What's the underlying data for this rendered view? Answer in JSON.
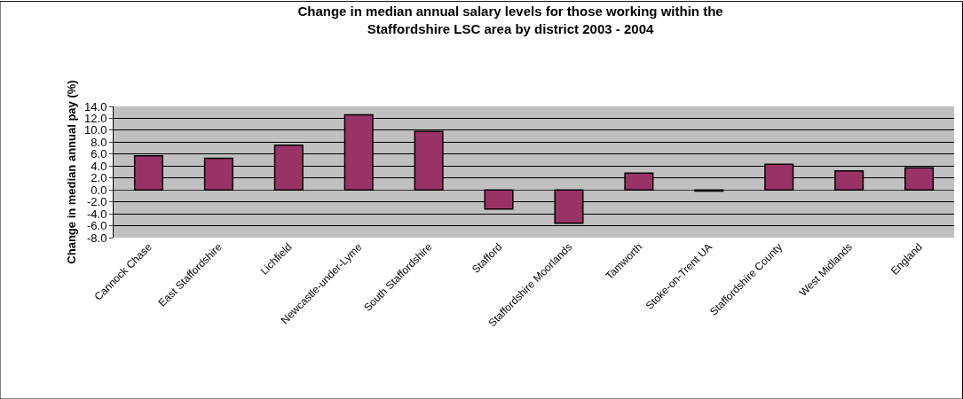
{
  "chart_data": {
    "type": "bar",
    "title": "Change in median annual salary levels for those working within the Staffordshire LSC area by district 2003 - 2004",
    "ylabel": "Change in median annual pay (%)",
    "categories": [
      "Cannock Chase",
      "East Staffordshire",
      "Lichfield",
      "Newcastle-under-Lyme",
      "South Staffordshire",
      "Stafford",
      "Staffordshire Moorlands",
      "Tamworth",
      "Stoke-on-Trent UA",
      "Staffordshire County",
      "West Midlands",
      "England"
    ],
    "values": [
      5.7,
      5.3,
      7.5,
      12.6,
      9.8,
      -3.2,
      -5.6,
      2.8,
      -0.2,
      4.3,
      3.2,
      3.7
    ],
    "color": "#993366",
    "ylim": [
      -8,
      14
    ],
    "yticks": [
      {
        "value": -8,
        "label": "-8.0"
      },
      {
        "value": -6,
        "label": "-6.0"
      },
      {
        "value": -4,
        "label": "-4.0"
      },
      {
        "value": -2,
        "label": "-2.0"
      },
      {
        "value": 0,
        "label": "0.0"
      },
      {
        "value": 2,
        "label": "2.0"
      },
      {
        "value": 4,
        "label": "4.0"
      },
      {
        "value": 6,
        "label": "6.0"
      },
      {
        "value": 8,
        "label": "8.0"
      },
      {
        "value": 10,
        "label": "10.0"
      },
      {
        "value": 12,
        "label": "12.0"
      },
      {
        "value": 14,
        "label": "14.0"
      }
    ],
    "grid": "y"
  }
}
